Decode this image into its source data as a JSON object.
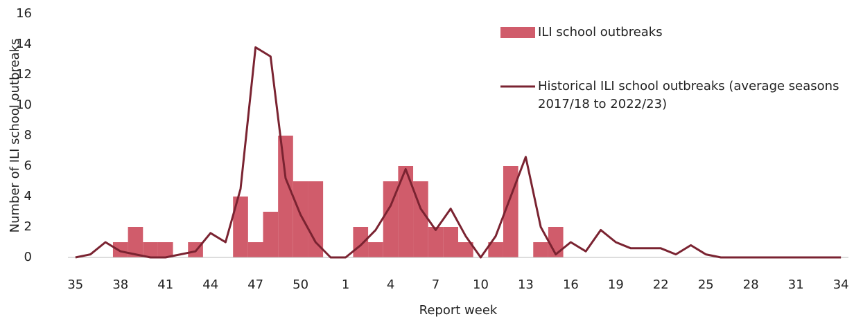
{
  "chart_data": {
    "type": "combo",
    "x_label": "Report week",
    "y_label": "Number of ILI school outbreaks",
    "categories": [
      "35",
      null,
      null,
      "38",
      null,
      null,
      "41",
      null,
      null,
      "44",
      null,
      null,
      "47",
      null,
      null,
      "50",
      null,
      null,
      "1",
      null,
      null,
      "4",
      null,
      null,
      "7",
      null,
      null,
      "10",
      null,
      null,
      "13",
      null,
      null,
      "16",
      null,
      null,
      "19",
      null,
      null,
      "22",
      null,
      null,
      "25",
      null,
      null,
      "28",
      null,
      null,
      "31",
      null,
      null,
      "34"
    ],
    "series": [
      {
        "name": "ILI school outbreaks",
        "type": "bar",
        "color": "#d05c6b",
        "values": [
          0,
          0,
          0,
          1,
          2,
          1,
          1,
          0,
          1,
          0,
          0,
          4,
          1,
          3,
          8,
          5,
          5,
          0,
          0,
          2,
          1,
          5,
          6,
          5,
          2,
          2,
          1,
          0,
          1,
          6,
          0,
          1,
          2,
          0,
          0,
          0,
          0,
          0,
          0,
          0,
          0,
          0,
          0,
          0,
          0,
          0,
          0,
          0,
          0,
          0,
          0,
          0
        ]
      },
      {
        "name": "Historical ILI school outbreaks (average seasons 2017/18 to 2022/23)",
        "type": "line",
        "color": "#7a2331",
        "values": [
          0,
          0.2,
          1,
          0.4,
          0.2,
          0,
          0,
          0.2,
          0.4,
          1.6,
          1,
          4.5,
          13.8,
          13.2,
          5.2,
          2.8,
          1,
          0,
          0,
          0.8,
          1.8,
          3.4,
          5.8,
          3.2,
          1.8,
          3.2,
          1.4,
          0,
          1.4,
          4,
          6.6,
          2,
          0.2,
          1,
          0.4,
          1.8,
          1,
          0.6,
          0.6,
          0.6,
          0.2,
          0.8,
          0.2,
          0,
          0,
          0,
          0,
          0,
          0,
          0,
          0,
          0
        ]
      }
    ],
    "ylim": [
      0,
      16
    ],
    "yticks": [
      0,
      2,
      4,
      6,
      8,
      10,
      12,
      14,
      16
    ],
    "grid": false,
    "legend": "top-right"
  }
}
